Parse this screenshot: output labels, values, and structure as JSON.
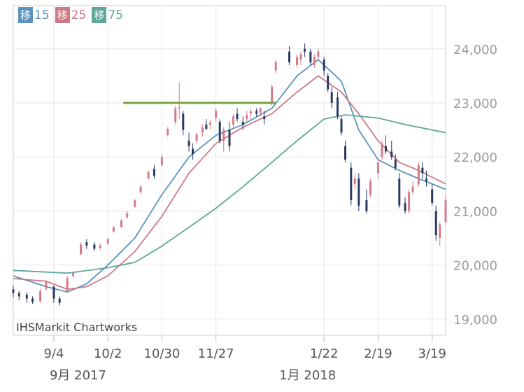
{
  "chart_data": {
    "type": "candlestick",
    "legend": [
      {
        "chip": "移",
        "period": "15",
        "color": "#5b93bd"
      },
      {
        "chip": "移",
        "period": "25",
        "color": "#cc7a86"
      },
      {
        "chip": "移",
        "period": "75",
        "color": "#5fa79b"
      }
    ],
    "watermark": "IHSMarkit Chartworks",
    "y_ticks": [
      "24,000",
      "23,000",
      "22,000",
      "21,000",
      "20,000",
      "19,000"
    ],
    "y_tick_values": [
      24000,
      23000,
      22000,
      21000,
      20000,
      19000
    ],
    "ylim": [
      18700,
      24800
    ],
    "x_ticks": [
      "9/4",
      "10/2",
      "10/30",
      "11/27",
      "1/22",
      "2/19",
      "3/19"
    ],
    "x_tick_dates": [
      "2017-09-04",
      "2017-10-02",
      "2017-10-30",
      "2017-11-27",
      "2018-01-22",
      "2018-02-19",
      "2018-03-19"
    ],
    "month_labels": [
      {
        "label": "9月 2017",
        "date": "2017-09-04"
      },
      {
        "label": "1月 2018",
        "date": "2018-01-01"
      }
    ],
    "xlim": [
      "2017-08-14",
      "2018-03-26"
    ],
    "resistance_line": {
      "y": 23000,
      "from": "2017-10-10",
      "to": "2017-12-28",
      "color": "#7aa23c"
    },
    "candle_colors": {
      "up": "#d77a88",
      "down": "#2a3a63"
    },
    "candles": [
      [
        "2017-08-14",
        19550,
        19620,
        19400,
        19480
      ],
      [
        "2017-08-17",
        19480,
        19520,
        19350,
        19420
      ],
      [
        "2017-08-21",
        19450,
        19500,
        19300,
        19380
      ],
      [
        "2017-08-24",
        19380,
        19420,
        19280,
        19320
      ],
      [
        "2017-08-28",
        19330,
        19560,
        19300,
        19520
      ],
      [
        "2017-08-31",
        19560,
        19720,
        19520,
        19680
      ],
      [
        "2017-09-04",
        19600,
        19620,
        19300,
        19380
      ],
      [
        "2017-09-07",
        19380,
        19420,
        19250,
        19300
      ],
      [
        "2017-09-11",
        19500,
        19800,
        19480,
        19760
      ],
      [
        "2017-09-14",
        19800,
        19880,
        19760,
        19850
      ],
      [
        "2017-09-18",
        20200,
        20420,
        20180,
        20380
      ],
      [
        "2017-09-21",
        20420,
        20480,
        20300,
        20360
      ],
      [
        "2017-09-25",
        20380,
        20420,
        20260,
        20300
      ],
      [
        "2017-09-28",
        20320,
        20400,
        20280,
        20360
      ],
      [
        "2017-10-02",
        20400,
        20500,
        20380,
        20480
      ],
      [
        "2017-10-05",
        20620,
        20720,
        20600,
        20700
      ],
      [
        "2017-10-09",
        20700,
        20850,
        20690,
        20820
      ],
      [
        "2017-10-12",
        20880,
        21000,
        20860,
        20960
      ],
      [
        "2017-10-16",
        21080,
        21220,
        21060,
        21200
      ],
      [
        "2017-10-19",
        21350,
        21480,
        21320,
        21450
      ],
      [
        "2017-10-23",
        21600,
        21750,
        21580,
        21720
      ],
      [
        "2017-10-26",
        21780,
        21850,
        21600,
        21650
      ],
      [
        "2017-10-30",
        21850,
        22050,
        21820,
        22000
      ],
      [
        "2017-11-02",
        22400,
        22550,
        22380,
        22520
      ],
      [
        "2017-11-06",
        22650,
        22950,
        22600,
        22900
      ],
      [
        "2017-11-08",
        22900,
        23380,
        22700,
        22920
      ],
      [
        "2017-11-10",
        22800,
        22850,
        22400,
        22500
      ],
      [
        "2017-11-13",
        22300,
        22450,
        22100,
        22200
      ],
      [
        "2017-11-15",
        22150,
        22250,
        21950,
        22050
      ],
      [
        "2017-11-17",
        22300,
        22450,
        22250,
        22420
      ],
      [
        "2017-11-20",
        22450,
        22600,
        22380,
        22550
      ],
      [
        "2017-11-22",
        22600,
        22700,
        22500,
        22520
      ],
      [
        "2017-11-24",
        22600,
        22680,
        22520,
        22640
      ],
      [
        "2017-11-27",
        22720,
        22900,
        22650,
        22850
      ],
      [
        "2017-11-29",
        22650,
        22700,
        22250,
        22300
      ],
      [
        "2017-12-01",
        22300,
        22550,
        22100,
        22500
      ],
      [
        "2017-12-04",
        22500,
        22650,
        22100,
        22200
      ],
      [
        "2017-12-06",
        22600,
        22800,
        22550,
        22750
      ],
      [
        "2017-12-08",
        22800,
        22900,
        22650,
        22700
      ],
      [
        "2017-12-11",
        22650,
        22750,
        22500,
        22600
      ],
      [
        "2017-12-13",
        22700,
        22850,
        22650,
        22780
      ],
      [
        "2017-12-15",
        22800,
        22900,
        22700,
        22850
      ],
      [
        "2017-12-18",
        22850,
        22900,
        22750,
        22800
      ],
      [
        "2017-12-20",
        22820,
        22920,
        22750,
        22900
      ],
      [
        "2017-12-22",
        22750,
        22850,
        22600,
        22700
      ],
      [
        "2017-12-26",
        23000,
        23350,
        22950,
        23300
      ],
      [
        "2017-12-28",
        23600,
        23800,
        23550,
        23750
      ],
      [
        "2018-01-04",
        23950,
        24050,
        23700,
        23750
      ],
      [
        "2018-01-08",
        23700,
        23900,
        23650,
        23850
      ],
      [
        "2018-01-10",
        23800,
        23950,
        23700,
        23900
      ],
      [
        "2018-01-12",
        24000,
        24100,
        23850,
        23950
      ],
      [
        "2018-01-15",
        23950,
        24000,
        23700,
        23750
      ],
      [
        "2018-01-17",
        23700,
        23900,
        23650,
        23850
      ],
      [
        "2018-01-19",
        23850,
        24000,
        23800,
        23950
      ],
      [
        "2018-01-22",
        23800,
        23850,
        23500,
        23600
      ],
      [
        "2018-01-24",
        23500,
        23550,
        23200,
        23250
      ],
      [
        "2018-01-26",
        23200,
        23300,
        22900,
        23000
      ],
      [
        "2018-01-29",
        23100,
        23200,
        22700,
        22750
      ],
      [
        "2018-01-31",
        22700,
        22750,
        22400,
        22450
      ],
      [
        "2018-02-02",
        22200,
        22300,
        21900,
        21950
      ],
      [
        "2018-02-05",
        21800,
        21900,
        21100,
        21200
      ],
      [
        "2018-02-07",
        21500,
        21700,
        21400,
        21600
      ],
      [
        "2018-02-09",
        21600,
        21700,
        21000,
        21100
      ],
      [
        "2018-02-13",
        21200,
        21400,
        20950,
        21000
      ],
      [
        "2018-02-15",
        21300,
        21600,
        21250,
        21550
      ],
      [
        "2018-02-19",
        21700,
        21950,
        21600,
        21900
      ],
      [
        "2018-02-21",
        22000,
        22300,
        21950,
        22250
      ],
      [
        "2018-02-23",
        22200,
        22400,
        22050,
        22100
      ],
      [
        "2018-02-26",
        22100,
        22300,
        21950,
        22000
      ],
      [
        "2018-02-28",
        21950,
        22050,
        21750,
        21800
      ],
      [
        "2018-03-02",
        21600,
        21700,
        21050,
        21100
      ],
      [
        "2018-03-05",
        21150,
        21250,
        20950,
        21000
      ],
      [
        "2018-03-07",
        21000,
        21400,
        20950,
        21350
      ],
      [
        "2018-03-09",
        21350,
        21550,
        21300,
        21450
      ],
      [
        "2018-03-12",
        21500,
        21900,
        21450,
        21850
      ],
      [
        "2018-03-14",
        21800,
        21900,
        21600,
        21700
      ],
      [
        "2018-03-16",
        21600,
        21750,
        21450,
        21550
      ],
      [
        "2018-03-19",
        21400,
        21500,
        21100,
        21150
      ],
      [
        "2018-03-21",
        21000,
        21100,
        20450,
        20550
      ],
      [
        "2018-03-23",
        20500,
        20800,
        20350,
        20750
      ],
      [
        "2018-03-26",
        20800,
        21300,
        20750,
        21200
      ]
    ],
    "ma": [
      {
        "period": "15",
        "color": "#5b93bd",
        "points": [
          [
            "2017-08-14",
            19800
          ],
          [
            "2017-08-31",
            19600
          ],
          [
            "2017-09-11",
            19500
          ],
          [
            "2017-09-21",
            19650
          ],
          [
            "2017-10-02",
            20000
          ],
          [
            "2017-10-16",
            20500
          ],
          [
            "2017-10-30",
            21300
          ],
          [
            "2017-11-13",
            22000
          ],
          [
            "2017-11-27",
            22400
          ],
          [
            "2017-12-11",
            22600
          ],
          [
            "2017-12-26",
            22900
          ],
          [
            "2018-01-08",
            23500
          ],
          [
            "2018-01-19",
            23800
          ],
          [
            "2018-01-31",
            23400
          ],
          [
            "2018-02-09",
            22500
          ],
          [
            "2018-02-19",
            21950
          ],
          [
            "2018-03-02",
            21750
          ],
          [
            "2018-03-12",
            21600
          ],
          [
            "2018-03-26",
            21400
          ]
        ]
      },
      {
        "period": "25",
        "color": "#cc7a86",
        "points": [
          [
            "2017-08-14",
            19750
          ],
          [
            "2017-08-31",
            19700
          ],
          [
            "2017-09-11",
            19550
          ],
          [
            "2017-09-21",
            19600
          ],
          [
            "2017-10-02",
            19800
          ],
          [
            "2017-10-16",
            20250
          ],
          [
            "2017-10-30",
            20900
          ],
          [
            "2017-11-13",
            21700
          ],
          [
            "2017-11-27",
            22250
          ],
          [
            "2017-12-11",
            22550
          ],
          [
            "2017-12-26",
            22800
          ],
          [
            "2018-01-08",
            23200
          ],
          [
            "2018-01-19",
            23500
          ],
          [
            "2018-01-31",
            23200
          ],
          [
            "2018-02-09",
            22800
          ],
          [
            "2018-02-19",
            22300
          ],
          [
            "2018-03-02",
            21900
          ],
          [
            "2018-03-12",
            21750
          ],
          [
            "2018-03-26",
            21500
          ]
        ]
      },
      {
        "period": "75",
        "color": "#5fa79b",
        "points": [
          [
            "2017-08-14",
            19900
          ],
          [
            "2017-09-11",
            19850
          ],
          [
            "2017-10-02",
            19950
          ],
          [
            "2017-10-16",
            20050
          ],
          [
            "2017-10-30",
            20350
          ],
          [
            "2017-11-13",
            20700
          ],
          [
            "2017-11-27",
            21050
          ],
          [
            "2017-12-11",
            21450
          ],
          [
            "2017-12-26",
            21900
          ],
          [
            "2018-01-08",
            22300
          ],
          [
            "2018-01-22",
            22700
          ],
          [
            "2018-02-02",
            22780
          ],
          [
            "2018-02-19",
            22720
          ],
          [
            "2018-03-05",
            22600
          ],
          [
            "2018-03-26",
            22450
          ]
        ]
      }
    ]
  }
}
